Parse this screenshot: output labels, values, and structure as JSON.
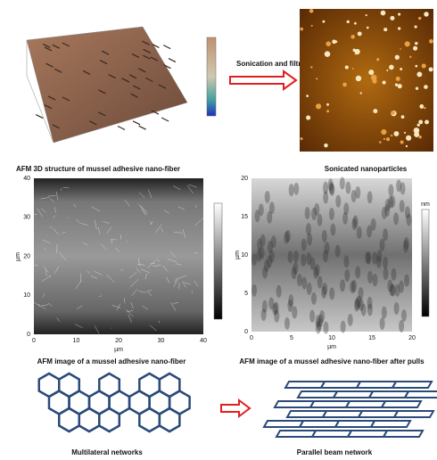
{
  "top": {
    "arrow_label": "Sonication and filtration",
    "left_caption": "AFM 3D structure of mussel adhesive nano-fiber",
    "right_caption": "Sonicated nanoparticles"
  },
  "middle": {
    "left": {
      "caption": "AFM image of a mussel adhesive nano-fiber",
      "axis_label": "µm",
      "x_ticks": [
        0,
        10,
        20,
        30,
        40
      ],
      "y_ticks": [
        0,
        10,
        20,
        30,
        40
      ]
    },
    "right": {
      "caption": "AFM image of a mussel adhesive nano-fiber after pulls",
      "axis_label": "µm",
      "colorbar_unit": "nm",
      "x_ticks": [
        0,
        5,
        10,
        15,
        20
      ],
      "y_ticks": [
        0,
        5,
        10,
        15,
        20
      ]
    }
  },
  "bottom": {
    "left_caption": "Multilateral networks",
    "right_caption": "Parallel beam network"
  }
}
